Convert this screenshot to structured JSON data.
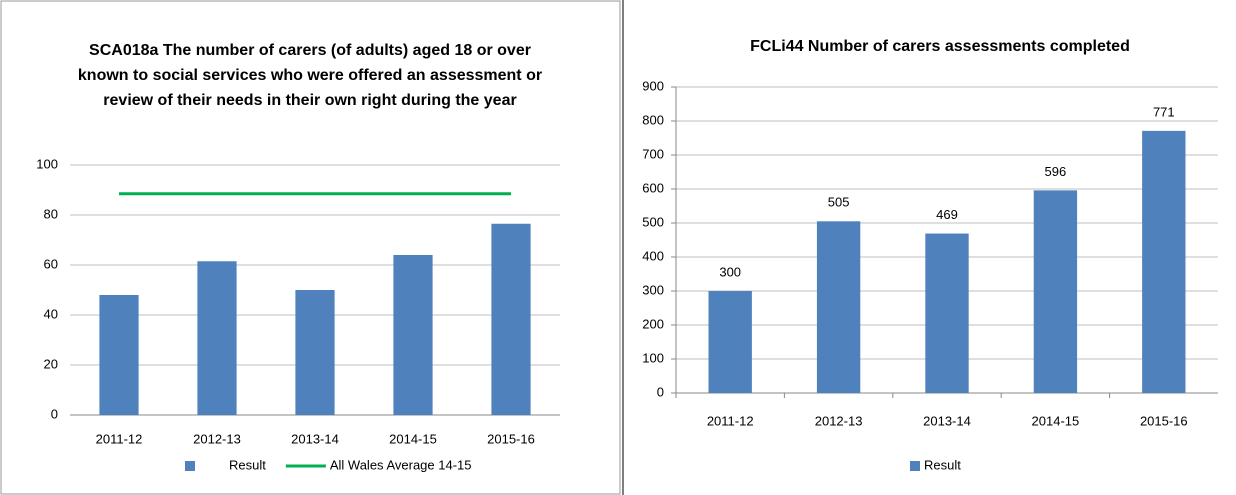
{
  "chart_data": [
    {
      "type": "bar",
      "title": "SCA018a The number of carers (of adults) aged 18 or over known to social services who were offered an assessment or review of their needs in their own right during the year",
      "categories": [
        "2011-12",
        "2012-13",
        "2013-14",
        "2014-15",
        "2015-16"
      ],
      "series": [
        {
          "name": "Result",
          "type": "bar",
          "color": "#4f81bd",
          "values": [
            48,
            61.5,
            50,
            64,
            76.5
          ]
        },
        {
          "name": "All Wales Average 14-15",
          "type": "line",
          "color": "#00b050",
          "values": [
            88.5,
            88.5,
            88.5,
            88.5,
            88.5
          ]
        }
      ],
      "ylim": [
        0,
        100
      ],
      "yticks": [
        0,
        20,
        40,
        60,
        80,
        100
      ],
      "grid": true,
      "legend": "bottom"
    },
    {
      "type": "bar",
      "title": "FCLi44 Number of carers assessments completed",
      "categories": [
        "2011-12",
        "2012-13",
        "2013-14",
        "2014-15",
        "2015-16"
      ],
      "series": [
        {
          "name": "Result",
          "type": "bar",
          "color": "#4f81bd",
          "values": [
            300,
            505,
            469,
            596,
            771
          ]
        }
      ],
      "data_labels": true,
      "ylim": [
        0,
        900
      ],
      "yticks": [
        0,
        100,
        200,
        300,
        400,
        500,
        600,
        700,
        800,
        900
      ],
      "grid": true,
      "legend": "bottom"
    }
  ]
}
